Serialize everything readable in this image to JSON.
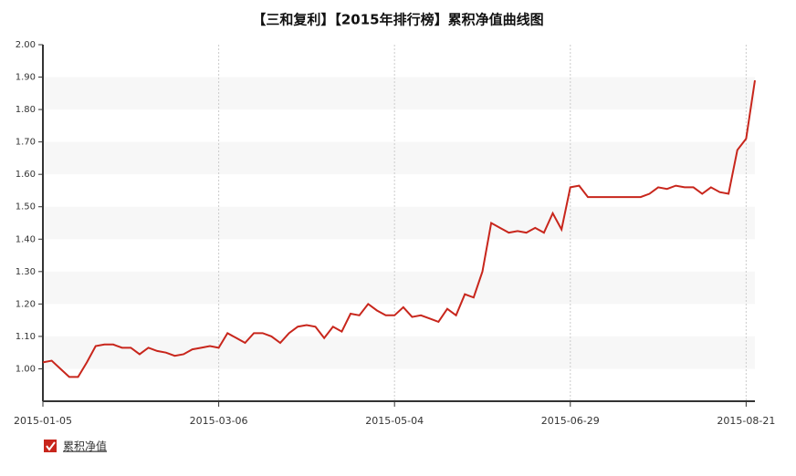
{
  "chart_data": {
    "type": "line",
    "title": "【三和复利】【2015年排行榜】累积净值曲线图",
    "categories": [
      "2015-01-05",
      null,
      null,
      null,
      null,
      null,
      null,
      null,
      null,
      null,
      null,
      null,
      null,
      null,
      null,
      null,
      null,
      null,
      null,
      null,
      "2015-03-06",
      null,
      null,
      null,
      null,
      null,
      null,
      null,
      null,
      null,
      null,
      null,
      null,
      null,
      null,
      null,
      null,
      null,
      null,
      null,
      "2015-05-04",
      null,
      null,
      null,
      null,
      null,
      null,
      null,
      null,
      null,
      null,
      null,
      null,
      null,
      null,
      null,
      null,
      null,
      null,
      null,
      "2015-06-29",
      null,
      null,
      null,
      null,
      null,
      null,
      null,
      null,
      null,
      null,
      null,
      null,
      null,
      null,
      null,
      null,
      null,
      null,
      null,
      "2015-08-21",
      null
    ],
    "series": [
      {
        "name": "累积净值",
        "color": "#c8261c",
        "values": [
          1.02,
          1.025,
          1.0,
          0.975,
          0.975,
          1.02,
          1.07,
          1.075,
          1.075,
          1.065,
          1.065,
          1.045,
          1.065,
          1.055,
          1.05,
          1.04,
          1.045,
          1.06,
          1.065,
          1.07,
          1.065,
          1.11,
          1.095,
          1.08,
          1.11,
          1.11,
          1.1,
          1.08,
          1.11,
          1.13,
          1.135,
          1.13,
          1.095,
          1.13,
          1.115,
          1.17,
          1.165,
          1.2,
          1.18,
          1.165,
          1.165,
          1.19,
          1.16,
          1.165,
          1.155,
          1.145,
          1.185,
          1.165,
          1.23,
          1.22,
          1.3,
          1.45,
          1.435,
          1.42,
          1.425,
          1.42,
          1.435,
          1.42,
          1.48,
          1.43,
          1.56,
          1.565,
          1.53,
          1.53,
          1.53,
          1.53,
          1.53,
          1.53,
          1.53,
          1.54,
          1.56,
          1.555,
          1.565,
          1.56,
          1.56,
          1.54,
          1.56,
          1.545,
          1.54,
          1.675,
          1.71,
          1.89
        ]
      }
    ],
    "ylim": [
      0.9,
      2.0
    ],
    "yticks": [
      {
        "value": 1.0,
        "label": "1.00"
      },
      {
        "value": 1.1,
        "label": "1.10"
      },
      {
        "value": 1.2,
        "label": "1.20"
      },
      {
        "value": 1.3,
        "label": "1.30"
      },
      {
        "value": 1.4,
        "label": "1.40"
      },
      {
        "value": 1.5,
        "label": "1.50"
      },
      {
        "value": 1.6,
        "label": "1.60"
      },
      {
        "value": 1.7,
        "label": "1.70"
      },
      {
        "value": 1.8,
        "label": "1.80"
      },
      {
        "value": 1.9,
        "label": "1.90"
      },
      {
        "value": 2.0,
        "label": "2.00"
      }
    ]
  }
}
